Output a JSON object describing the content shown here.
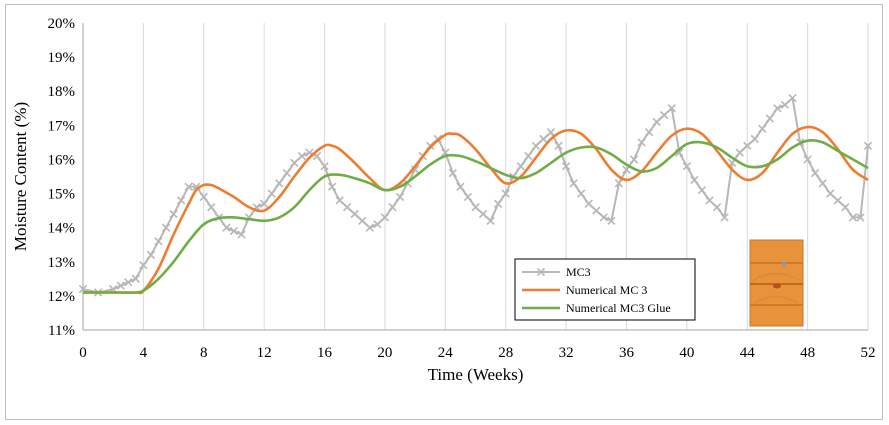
{
  "chart_data": {
    "type": "line",
    "xlabel": "Time (Weeks)",
    "ylabel": "Moisture Content (%)",
    "xlim": [
      0,
      52
    ],
    "ylim": [
      11,
      20
    ],
    "x_ticks": [
      "0",
      "4",
      "8",
      "12",
      "16",
      "20",
      "24",
      "28",
      "32",
      "36",
      "40",
      "44",
      "48",
      "52"
    ],
    "y_ticks": [
      "11%",
      "12%",
      "13%",
      "14%",
      "15%",
      "16%",
      "17%",
      "18%",
      "19%",
      "20%"
    ],
    "grid": "vertical",
    "legend_position": "bottom-center",
    "series": [
      {
        "name": "MC3",
        "color": "#b7b7b7",
        "marker": "x",
        "x": [
          0,
          1,
          2,
          2.5,
          3,
          3.5,
          4,
          4.5,
          5,
          5.5,
          6,
          6.5,
          7,
          7.5,
          8,
          8.5,
          9,
          9.5,
          10,
          10.5,
          11,
          11.5,
          12,
          12.5,
          13,
          13.5,
          14,
          14.5,
          15,
          15.5,
          16,
          16.5,
          17,
          17.5,
          18,
          18.5,
          19,
          19.5,
          20,
          20.5,
          21,
          21.5,
          22,
          22.5,
          23,
          23.5,
          24,
          24.5,
          25,
          25.5,
          26,
          26.5,
          27,
          27.5,
          28,
          28.5,
          29,
          29.5,
          30,
          30.5,
          31,
          31.5,
          32,
          32.5,
          33,
          33.5,
          34,
          34.5,
          35,
          35.5,
          36,
          36.5,
          37,
          37.5,
          38,
          38.5,
          39,
          39.5,
          40,
          40.5,
          41,
          41.5,
          42,
          42.5,
          43,
          43.5,
          44,
          44.5,
          45,
          45.5,
          46,
          46.5,
          47,
          47.5,
          48,
          48.5,
          49,
          49.5,
          50,
          50.5,
          51,
          51.5,
          52
        ],
        "y": [
          12.2,
          12.1,
          12.2,
          12.3,
          12.4,
          12.5,
          12.9,
          13.2,
          13.6,
          14.0,
          14.4,
          14.8,
          15.2,
          15.2,
          14.9,
          14.6,
          14.3,
          14.0,
          13.9,
          13.8,
          14.3,
          14.6,
          14.7,
          15.0,
          15.3,
          15.6,
          15.9,
          16.1,
          16.2,
          16.1,
          15.8,
          15.2,
          14.8,
          14.6,
          14.4,
          14.2,
          14.0,
          14.1,
          14.3,
          14.6,
          14.9,
          15.3,
          15.7,
          16.1,
          16.4,
          16.6,
          16.2,
          15.6,
          15.2,
          14.9,
          14.6,
          14.4,
          14.2,
          14.7,
          15.0,
          15.5,
          15.8,
          16.1,
          16.4,
          16.6,
          16.8,
          16.4,
          15.8,
          15.3,
          15.0,
          14.7,
          14.5,
          14.3,
          14.2,
          15.3,
          15.7,
          16.0,
          16.5,
          16.8,
          17.1,
          17.3,
          17.5,
          16.2,
          15.8,
          15.4,
          15.1,
          14.8,
          14.6,
          14.3,
          15.9,
          16.2,
          16.4,
          16.6,
          16.9,
          17.2,
          17.5,
          17.6,
          17.8,
          16.5,
          16.0,
          15.6,
          15.3,
          15.0,
          14.8,
          14.6,
          14.3,
          14.3,
          16.4
        ]
      },
      {
        "name": "Numerical MC 3",
        "color": "#ed7d31",
        "marker": "none",
        "x": [
          0,
          2,
          3.5,
          4,
          5,
          6,
          7,
          7.5,
          8,
          8.5,
          9,
          10,
          11,
          12,
          13,
          14,
          15,
          16,
          16.5,
          17,
          18,
          19,
          20,
          21,
          22,
          23,
          24,
          24.5,
          25,
          26,
          27,
          28,
          29,
          30,
          31,
          32,
          33,
          34,
          35,
          36,
          37,
          38,
          39,
          40,
          41,
          42,
          43,
          44,
          45,
          46,
          47,
          48,
          49,
          50,
          51,
          52
        ],
        "y": [
          12.1,
          12.1,
          12.1,
          12.15,
          12.8,
          13.8,
          14.7,
          15.1,
          15.25,
          15.25,
          15.15,
          14.9,
          14.6,
          14.5,
          14.9,
          15.5,
          16.05,
          16.4,
          16.4,
          16.3,
          15.9,
          15.45,
          15.1,
          15.3,
          15.8,
          16.35,
          16.72,
          16.75,
          16.7,
          16.3,
          15.75,
          15.3,
          15.5,
          16.05,
          16.6,
          16.85,
          16.75,
          16.3,
          15.7,
          15.4,
          15.65,
          16.2,
          16.7,
          16.9,
          16.75,
          16.25,
          15.7,
          15.4,
          15.6,
          16.2,
          16.75,
          16.95,
          16.8,
          16.3,
          15.7,
          15.4
        ]
      },
      {
        "name": "Numerical MC3 Glue",
        "color": "#70ad47",
        "marker": "none",
        "x": [
          0,
          2,
          3,
          3.5,
          4,
          5,
          6,
          7,
          8,
          9,
          10,
          11,
          12,
          13,
          14,
          15,
          16,
          17,
          18,
          19,
          20,
          21,
          22,
          23,
          24,
          25,
          26,
          27,
          28,
          29,
          30,
          31,
          32,
          33,
          34,
          35,
          36,
          37,
          38,
          39,
          40,
          41,
          42,
          43,
          44,
          45,
          46,
          47,
          48,
          49,
          50,
          51,
          52
        ],
        "y": [
          12.1,
          12.1,
          12.1,
          12.1,
          12.15,
          12.5,
          13.0,
          13.6,
          14.1,
          14.28,
          14.3,
          14.25,
          14.2,
          14.3,
          14.6,
          15.1,
          15.5,
          15.55,
          15.45,
          15.3,
          15.1,
          15.2,
          15.5,
          15.85,
          16.1,
          16.1,
          15.95,
          15.75,
          15.55,
          15.45,
          15.6,
          15.9,
          16.2,
          16.35,
          16.35,
          16.15,
          15.85,
          15.65,
          15.75,
          16.1,
          16.45,
          16.5,
          16.35,
          16.05,
          15.8,
          15.8,
          16.0,
          16.35,
          16.55,
          16.5,
          16.25,
          16.0,
          15.75
        ]
      }
    ]
  }
}
